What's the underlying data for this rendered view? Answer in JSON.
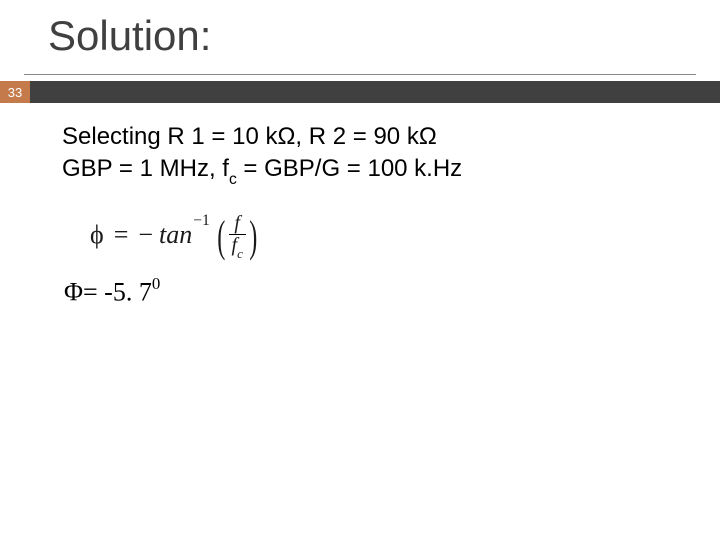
{
  "title": "Solution:",
  "slide_number": "33",
  "colors": {
    "badge_bg": "#c47a4a",
    "bar_bg": "#404040",
    "title_color": "#404040",
    "text_color": "#000000",
    "underline_color": "#888888"
  },
  "font_sizes": {
    "title": 42,
    "body": 24,
    "formula": 26,
    "result": 26
  },
  "body": {
    "line1_a": "Selecting R 1 = 10 k",
    "line1_b": ", R 2 = 90 k",
    "omega": "Ω",
    "line2_a": "GBP = 1 MHz, f",
    "line2_sub": "c",
    "line2_b": " = GBP/G = 100 k.Hz"
  },
  "formula": {
    "phi": "ϕ",
    "equals": "=",
    "minus": "−",
    "tan": "tan",
    "supm1": "−1",
    "lparen": "(",
    "rparen": ")",
    "num": "f",
    "den_f": "f",
    "den_sub": "c"
  },
  "result": {
    "phi_cap": "Φ",
    "text": "= -5. 7",
    "sup": "0"
  }
}
